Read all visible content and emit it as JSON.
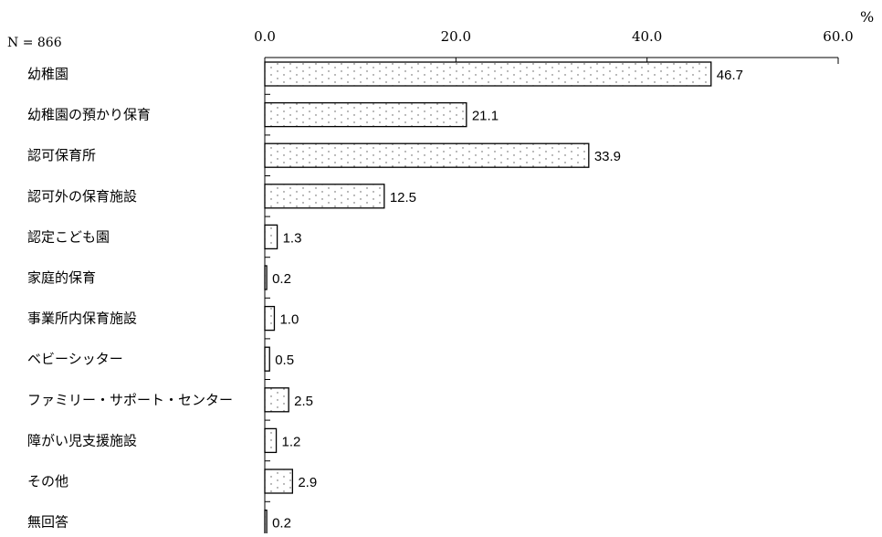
{
  "chart_data": {
    "type": "bar",
    "orientation": "horizontal",
    "n_label": "N = 866",
    "unit": "%",
    "xlim": [
      0,
      60
    ],
    "x_ticks": [
      "0.0",
      "20.0",
      "40.0",
      "60.0"
    ],
    "x_tick_values": [
      0,
      20,
      40,
      60
    ],
    "categories": [
      "幼稚園",
      "幼稚園の預かり保育",
      "認可保育所",
      "認可外の保育施設",
      "認定こども園",
      "家庭的保育",
      "事業所内保育施設",
      "ベビーシッター",
      "ファミリー・サポート・センター",
      "障がい児支援施設",
      "その他",
      "無回答"
    ],
    "values": [
      46.7,
      21.1,
      33.9,
      12.5,
      1.3,
      0.2,
      1.0,
      0.5,
      2.5,
      1.2,
      2.9,
      0.2
    ],
    "value_labels": [
      "46.7",
      "21.1",
      "33.9",
      "12.5",
      "1.3",
      "0.2",
      "1.0",
      "0.5",
      "2.5",
      "1.2",
      "2.9",
      "0.2"
    ],
    "bar_pattern": "dotted",
    "legend": "none",
    "grid": false
  }
}
